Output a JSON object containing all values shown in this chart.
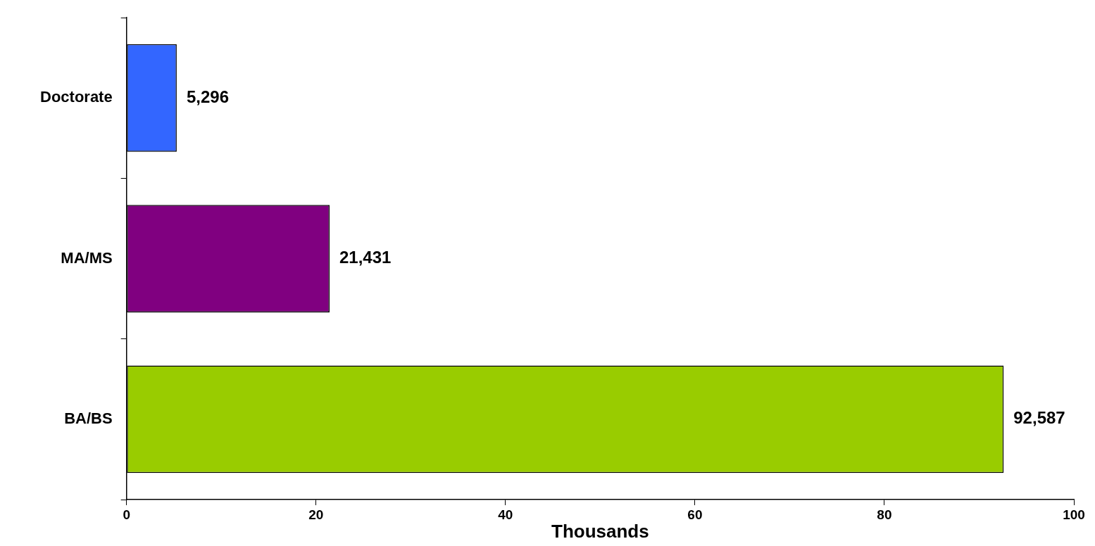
{
  "chart_data": {
    "type": "bar",
    "orientation": "horizontal",
    "categories": [
      "Doctorate",
      "MA/MS",
      "BA/BS"
    ],
    "values": [
      5.296,
      21.431,
      92.587
    ],
    "colors": [
      "#3366ff",
      "#800080",
      "#99cc00"
    ],
    "annotations": [
      {
        "text": "5,296",
        "x": 5.296,
        "y": "Doctorate"
      },
      {
        "text": "21,431",
        "x": 21.431,
        "y": "MA/MS"
      },
      {
        "text": "92,587",
        "x": 92.587,
        "y": "BA/BS"
      }
    ],
    "xlabel": "Thousands",
    "xlim": [
      0,
      100
    ],
    "xticks": [
      0,
      20,
      40,
      60,
      80,
      100
    ],
    "grid": false,
    "legend": false
  }
}
